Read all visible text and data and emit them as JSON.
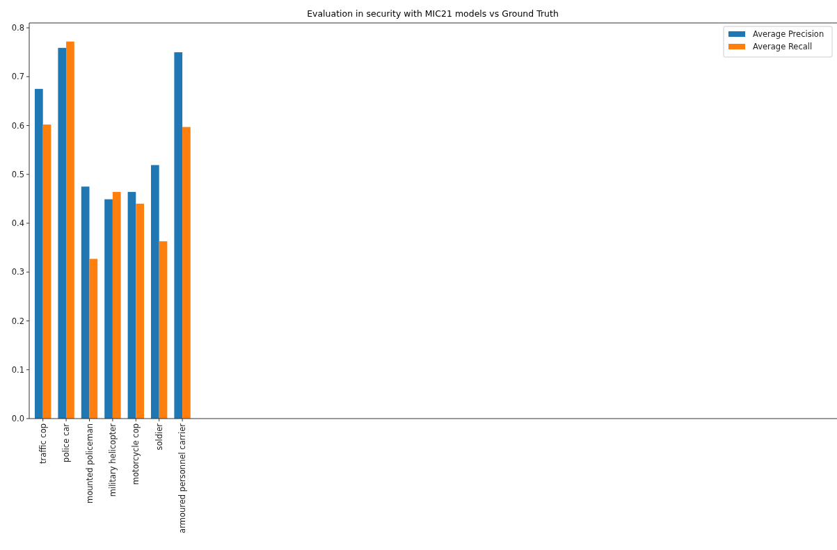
{
  "chart_data": {
    "type": "bar",
    "title": "Evaluation in security with MIC21 models vs Ground Truth",
    "categories": [
      "traffic cop",
      "police car",
      "mounted policeman",
      "military helicopter",
      "motorcycle cop",
      "soldier",
      "armoured personnel carrier"
    ],
    "series": [
      {
        "name": "Average Precision",
        "color": "#1f77b4",
        "values": [
          0.675,
          0.759,
          0.475,
          0.449,
          0.464,
          0.519,
          0.75
        ]
      },
      {
        "name": "Average Recall",
        "color": "#ff7f0e",
        "values": [
          0.602,
          0.772,
          0.327,
          0.464,
          0.44,
          0.363,
          0.597
        ]
      }
    ],
    "ylim": [
      0,
      0.81
    ],
    "yticks": [
      {
        "value": 0,
        "label": "0.0"
      },
      0.1,
      0.2,
      0.3,
      0.4,
      0.5,
      0.6,
      0.7,
      0.8
    ],
    "grid": false,
    "legend": "top right"
  }
}
